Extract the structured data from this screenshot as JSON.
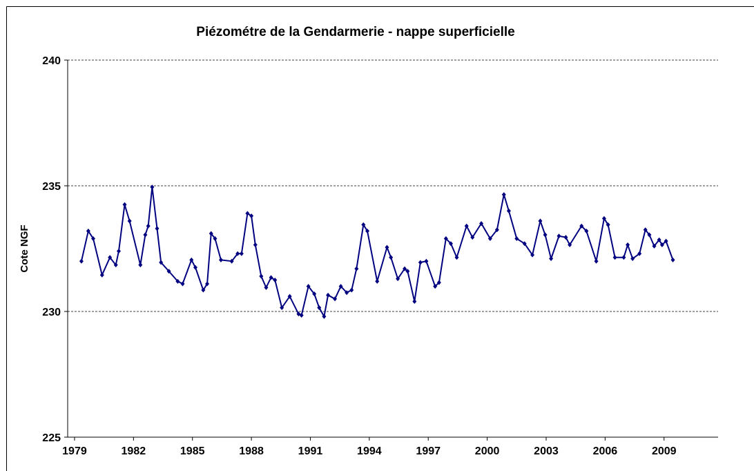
{
  "chart_data": {
    "type": "line",
    "title": "Piézométre de la Gendarmerie - nappe superficielle",
    "y_label": "Cote NGF",
    "xlim": [
      1978.65,
      2011.75
    ],
    "xticks": [
      1979,
      1982,
      1985,
      1988,
      1991,
      1994,
      1997,
      2000,
      2003,
      2006,
      2009
    ],
    "ylim": [
      225,
      240
    ],
    "yticks": [
      225,
      230,
      235,
      240
    ],
    "grid": true,
    "series": [
      {
        "color": "#000080",
        "x": [
          1979.35,
          1979.7,
          1979.95,
          1980.4,
          1980.8,
          1981.1,
          1981.25,
          1981.55,
          1981.8,
          1982.35,
          1982.6,
          1982.75,
          1982.95,
          1983.2,
          1983.4,
          1983.8,
          1984.25,
          1984.5,
          1984.95,
          1985.15,
          1985.55,
          1985.75,
          1985.95,
          1986.15,
          1986.45,
          1987.0,
          1987.3,
          1987.5,
          1987.8,
          1988.0,
          1988.2,
          1988.5,
          1988.75,
          1989.0,
          1989.2,
          1989.55,
          1989.95,
          1990.4,
          1990.55,
          1990.9,
          1991.2,
          1991.45,
          1991.7,
          1991.9,
          1992.25,
          1992.55,
          1992.85,
          1993.1,
          1993.35,
          1993.7,
          1993.9,
          1994.4,
          1994.9,
          1995.1,
          1995.45,
          1995.8,
          1995.95,
          1996.3,
          1996.6,
          1996.9,
          1997.35,
          1997.55,
          1997.9,
          1998.15,
          1998.45,
          1998.95,
          1999.25,
          1999.7,
          2000.15,
          2000.5,
          2000.85,
          2001.1,
          2001.5,
          2001.9,
          2002.3,
          2002.7,
          2002.95,
          2003.25,
          2003.65,
          2004.0,
          2004.2,
          2004.8,
          2005.05,
          2005.55,
          2005.95,
          2006.15,
          2006.5,
          2006.95,
          2007.15,
          2007.4,
          2007.75,
          2008.05,
          2008.25,
          2008.5,
          2008.75,
          2008.9,
          2009.1,
          2009.45
        ],
        "values": [
          232.0,
          233.2,
          232.9,
          231.45,
          232.15,
          231.85,
          232.4,
          234.25,
          233.6,
          231.85,
          233.05,
          233.4,
          234.95,
          233.3,
          231.95,
          231.6,
          231.2,
          231.1,
          232.05,
          231.75,
          230.85,
          231.1,
          233.1,
          232.9,
          232.05,
          232.0,
          232.3,
          232.3,
          233.9,
          233.8,
          232.65,
          231.4,
          230.95,
          231.35,
          231.25,
          230.15,
          230.6,
          229.9,
          229.85,
          231.0,
          230.7,
          230.15,
          229.8,
          230.65,
          230.5,
          231.0,
          230.75,
          230.85,
          231.7,
          233.45,
          233.2,
          231.2,
          232.55,
          232.15,
          231.3,
          231.7,
          231.6,
          230.4,
          231.95,
          232.0,
          231.0,
          231.15,
          232.9,
          232.7,
          232.15,
          233.4,
          232.95,
          233.5,
          232.9,
          233.25,
          234.65,
          234.0,
          232.9,
          232.7,
          232.25,
          233.6,
          233.05,
          232.1,
          233.0,
          232.95,
          232.65,
          233.4,
          233.2,
          232.0,
          233.7,
          233.45,
          232.15,
          232.15,
          232.65,
          232.1,
          232.3,
          233.25,
          233.05,
          232.6,
          232.85,
          232.65,
          232.8,
          232.05
        ]
      }
    ]
  }
}
